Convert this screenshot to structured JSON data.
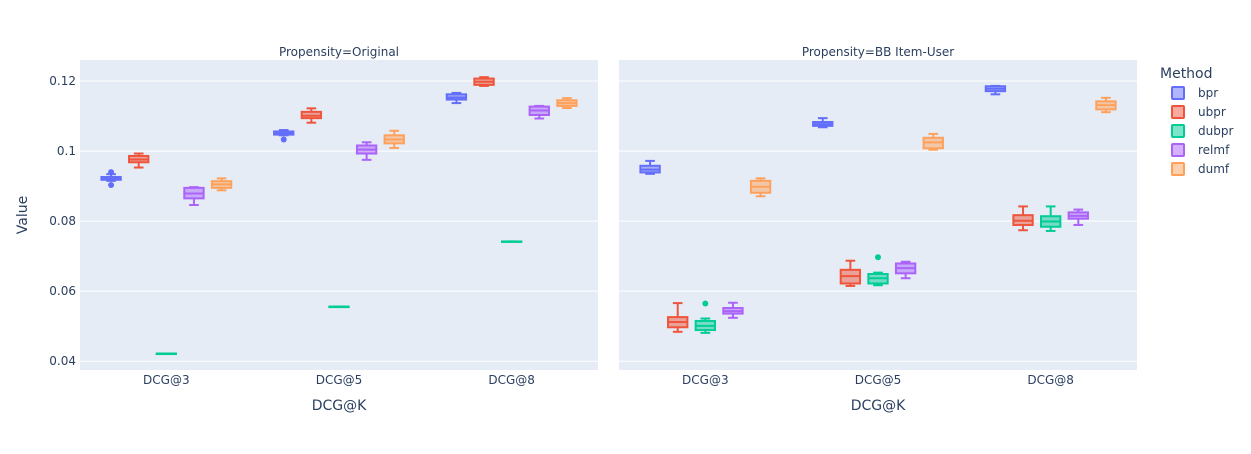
{
  "chart_data": {
    "type": "box",
    "ylabel": "Value",
    "xlabel": "DCG@K",
    "ylim": [
      0.0375,
      0.126
    ],
    "yticks": [
      {
        "value": 0.04,
        "label": "0.04"
      },
      {
        "value": 0.06,
        "label": "0.06"
      },
      {
        "value": 0.08,
        "label": "0.08"
      },
      {
        "value": 0.1,
        "label": "0.1"
      },
      {
        "value": 0.12,
        "label": "0.12"
      }
    ],
    "categories": [
      "DCG@3",
      "DCG@5",
      "DCG@8"
    ],
    "legend": {
      "title": "Method",
      "position": "right",
      "items": [
        {
          "name": "bpr",
          "color": "#636efa"
        },
        {
          "name": "ubpr",
          "color": "#ef553b"
        },
        {
          "name": "dubpr",
          "color": "#00cc96"
        },
        {
          "name": "relmf",
          "color": "#ab63fa"
        },
        {
          "name": "dumf",
          "color": "#ffa15a"
        }
      ]
    },
    "facets": [
      {
        "title": "Propensity=Original",
        "boxes": {
          "bpr": [
            {
              "category": "DCG@3",
              "min": 0.0915,
              "q1": 0.0918,
              "median": 0.0922,
              "q3": 0.0926,
              "max": 0.0934,
              "outliers": [
                0.0903,
                0.094
              ]
            },
            {
              "category": "DCG@5",
              "min": 0.1045,
              "q1": 0.1047,
              "median": 0.1051,
              "q3": 0.1056,
              "max": 0.106,
              "outliers": [
                0.1033
              ]
            },
            {
              "category": "DCG@8",
              "min": 0.1137,
              "q1": 0.1147,
              "median": 0.1153,
              "q3": 0.1162,
              "max": 0.1166,
              "outliers": []
            }
          ],
          "ubpr": [
            {
              "category": "DCG@3",
              "min": 0.0953,
              "q1": 0.0968,
              "median": 0.0976,
              "q3": 0.0986,
              "max": 0.0993,
              "outliers": []
            },
            {
              "category": "DCG@5",
              "min": 0.1081,
              "q1": 0.1094,
              "median": 0.1101,
              "q3": 0.1112,
              "max": 0.1122,
              "outliers": []
            },
            {
              "category": "DCG@8",
              "min": 0.1186,
              "q1": 0.1189,
              "median": 0.1198,
              "q3": 0.1207,
              "max": 0.1211,
              "outliers": []
            }
          ],
          "dubpr": [
            {
              "category": "DCG@3",
              "min": 0.0422,
              "q1": 0.0422,
              "median": 0.0422,
              "q3": 0.0422,
              "max": 0.0422,
              "outliers": []
            },
            {
              "category": "DCG@5",
              "min": 0.0556,
              "q1": 0.0556,
              "median": 0.0556,
              "q3": 0.0556,
              "max": 0.0556,
              "outliers": []
            },
            {
              "category": "DCG@8",
              "min": 0.0742,
              "q1": 0.0742,
              "median": 0.0742,
              "q3": 0.0742,
              "max": 0.0742,
              "outliers": []
            }
          ],
          "relmf": [
            {
              "category": "DCG@3",
              "min": 0.0846,
              "q1": 0.0865,
              "median": 0.0879,
              "q3": 0.0895,
              "max": 0.0897,
              "outliers": []
            },
            {
              "category": "DCG@5",
              "min": 0.0975,
              "q1": 0.0993,
              "median": 0.1004,
              "q3": 0.1016,
              "max": 0.1025,
              "outliers": []
            },
            {
              "category": "DCG@8",
              "min": 0.1093,
              "q1": 0.1103,
              "median": 0.1116,
              "q3": 0.1127,
              "max": 0.1129,
              "outliers": []
            }
          ],
          "dumf": [
            {
              "category": "DCG@3",
              "min": 0.0888,
              "q1": 0.0895,
              "median": 0.0905,
              "q3": 0.0914,
              "max": 0.0922,
              "outliers": []
            },
            {
              "category": "DCG@5",
              "min": 0.1009,
              "q1": 0.1022,
              "median": 0.1033,
              "q3": 0.1045,
              "max": 0.1058,
              "outliers": []
            },
            {
              "category": "DCG@8",
              "min": 0.1123,
              "q1": 0.1129,
              "median": 0.1137,
              "q3": 0.1145,
              "max": 0.1151,
              "outliers": []
            }
          ]
        }
      },
      {
        "title": "Propensity=BB Item-User",
        "boxes": {
          "bpr": [
            {
              "category": "DCG@3",
              "min": 0.0935,
              "q1": 0.0939,
              "median": 0.0947,
              "q3": 0.0958,
              "max": 0.0972,
              "outliers": []
            },
            {
              "category": "DCG@5",
              "min": 0.1068,
              "q1": 0.1072,
              "median": 0.1077,
              "q3": 0.1083,
              "max": 0.1094,
              "outliers": []
            },
            {
              "category": "DCG@8",
              "min": 0.1162,
              "q1": 0.1171,
              "median": 0.1178,
              "q3": 0.1185,
              "max": 0.1186,
              "outliers": []
            }
          ],
          "ubpr": [
            {
              "category": "DCG@3",
              "min": 0.0484,
              "q1": 0.0497,
              "median": 0.0512,
              "q3": 0.0526,
              "max": 0.0566,
              "outliers": []
            },
            {
              "category": "DCG@5",
              "min": 0.0615,
              "q1": 0.0622,
              "median": 0.0643,
              "q3": 0.0661,
              "max": 0.0687,
              "outliers": []
            },
            {
              "category": "DCG@8",
              "min": 0.0774,
              "q1": 0.0789,
              "median": 0.0801,
              "q3": 0.0817,
              "max": 0.0842,
              "outliers": []
            }
          ],
          "dubpr": [
            {
              "category": "DCG@3",
              "min": 0.0481,
              "q1": 0.0489,
              "median": 0.0501,
              "q3": 0.0515,
              "max": 0.0522,
              "outliers": [
                0.0565
              ]
            },
            {
              "category": "DCG@5",
              "min": 0.0617,
              "q1": 0.0622,
              "median": 0.0637,
              "q3": 0.0649,
              "max": 0.0653,
              "outliers": [
                0.0697
              ]
            },
            {
              "category": "DCG@8",
              "min": 0.0772,
              "q1": 0.0784,
              "median": 0.0799,
              "q3": 0.0814,
              "max": 0.0842,
              "outliers": []
            }
          ],
          "relmf": [
            {
              "category": "DCG@3",
              "min": 0.0524,
              "q1": 0.0536,
              "median": 0.0543,
              "q3": 0.0552,
              "max": 0.0567,
              "outliers": []
            },
            {
              "category": "DCG@5",
              "min": 0.0637,
              "q1": 0.0651,
              "median": 0.0666,
              "q3": 0.0679,
              "max": 0.0684,
              "outliers": []
            },
            {
              "category": "DCG@8",
              "min": 0.0789,
              "q1": 0.0807,
              "median": 0.0815,
              "q3": 0.0825,
              "max": 0.0833,
              "outliers": []
            }
          ],
          "dumf": [
            {
              "category": "DCG@3",
              "min": 0.0871,
              "q1": 0.0881,
              "median": 0.0898,
              "q3": 0.0915,
              "max": 0.0922,
              "outliers": []
            },
            {
              "category": "DCG@5",
              "min": 0.1004,
              "q1": 0.1008,
              "median": 0.1025,
              "q3": 0.1038,
              "max": 0.1049,
              "outliers": []
            },
            {
              "category": "DCG@8",
              "min": 0.1111,
              "q1": 0.1119,
              "median": 0.1131,
              "q3": 0.1142,
              "max": 0.1152,
              "outliers": []
            }
          ]
        }
      }
    ]
  }
}
